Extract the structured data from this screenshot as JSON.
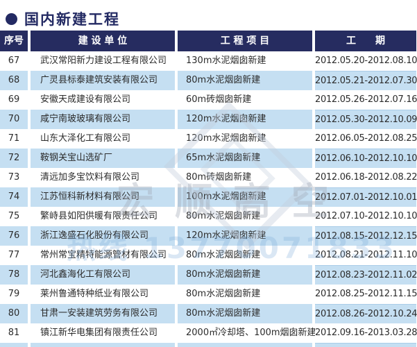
{
  "page_title": "国内新建工程",
  "colors": {
    "title_text": "#232a63",
    "header_bg": "#262c60",
    "row_alt_bg": "#c5dff2",
    "date_text": "#232a5e"
  },
  "table": {
    "columns": {
      "serial": "序号",
      "company": "建 设 单 位",
      "project": "工 程 项 目",
      "period": "工　　期"
    },
    "rows": [
      {
        "no": "67",
        "company": "武汉常阳新力建设工程有限公司",
        "project": "130m水泥烟囱新建",
        "period": "2012.05.20-2012.08.10"
      },
      {
        "no": "68",
        "company": "广灵县标泰建筑安装有限公司",
        "project": "80m水泥烟囱新建",
        "period": "2012.05.21-2012.07.30"
      },
      {
        "no": "69",
        "company": "安徽天成建设有限公司",
        "project": "60m砖烟囱新建",
        "period": "2012.05.26-2012.07.16"
      },
      {
        "no": "70",
        "company": "咸宁南玻玻璃有限公司",
        "project": "120m水泥烟囱新建",
        "period": "2012.05.30-2012.10.09"
      },
      {
        "no": "71",
        "company": "山东大泽化工有限公司",
        "project": "120m水泥烟囱新建",
        "period": "2012.06.05-2012.08.25"
      },
      {
        "no": "72",
        "company": "鞍钢关宝山选矿厂",
        "project": "65m水泥烟囱新建",
        "period": "2012.06.10-2012.10.10"
      },
      {
        "no": "73",
        "company": "清远加多宝饮料有限公司",
        "project": "80m砖烟囱新建",
        "period": "2012.06.18-2012.08.22"
      },
      {
        "no": "74",
        "company": "江苏恒科新材料有限公司",
        "project": "100m水泥烟囱新建",
        "period": "2012.07.01-2012.10.01"
      },
      {
        "no": "75",
        "company": "繁峙县如阳供暖有限责任公司",
        "project": "80m水泥烟囱新建",
        "period": "2012.07.10-2012.10.10"
      },
      {
        "no": "76",
        "company": "浙江逸盛石化股份有限公司",
        "project": "120m水泥烟囱新建",
        "period": "2012.08.15-2012.12.15"
      },
      {
        "no": "77",
        "company": "常州常宝精特能源管材有限公司",
        "project": "80m水泥烟囱新建",
        "period": "2012.08.21-2012.11.10"
      },
      {
        "no": "78",
        "company": "河北鑫海化工有限公司",
        "project": "80m水泥烟囱新建",
        "period": "2012.08.23-2012.11.02"
      },
      {
        "no": "79",
        "company": "莱州鲁通特种纸业有限公司",
        "project": "80m水泥烟囱新建",
        "period": "2012.08.25-2012.11.15"
      },
      {
        "no": "80",
        "company": "甘肃一安装建筑劳务有限公司",
        "project": "80m水泥烟囱新建",
        "period": "2012.08.26-2012.10.24"
      },
      {
        "no": "81",
        "company": "镇江新华电集团有限责任公司",
        "project": "2000㎡冷却塔、100m烟囱新建",
        "period": "2012.09.16-2013.03.28"
      }
    ]
  },
  "watermark": {
    "brand_text": "宏顺高空",
    "phone_text": "热线 13770071833"
  }
}
